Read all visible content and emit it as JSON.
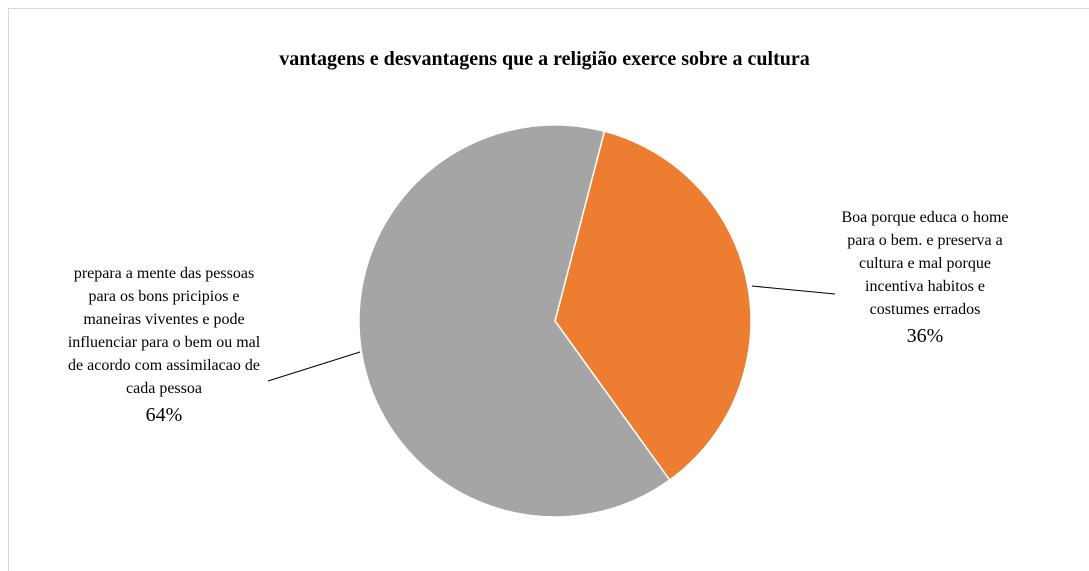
{
  "chart_data": {
    "type": "pie",
    "title": "vantagens e desvantagens que  a religião  exerce sobre a cultura",
    "categories": [
      "Boa porque educa o home para o bem. e preserva a cultura e mal porque incentiva habitos e costumes errados",
      "prepara a mente das pessoas para os bons pricipios e maneiras viventes e pode influenciar para o bem ou mal de acordo com assimilacao de cada pessoa"
    ],
    "values": [
      36,
      64
    ],
    "value_labels": [
      "36%",
      "64%"
    ],
    "colors": [
      "#ed7d31",
      "#a5a5a5"
    ]
  }
}
